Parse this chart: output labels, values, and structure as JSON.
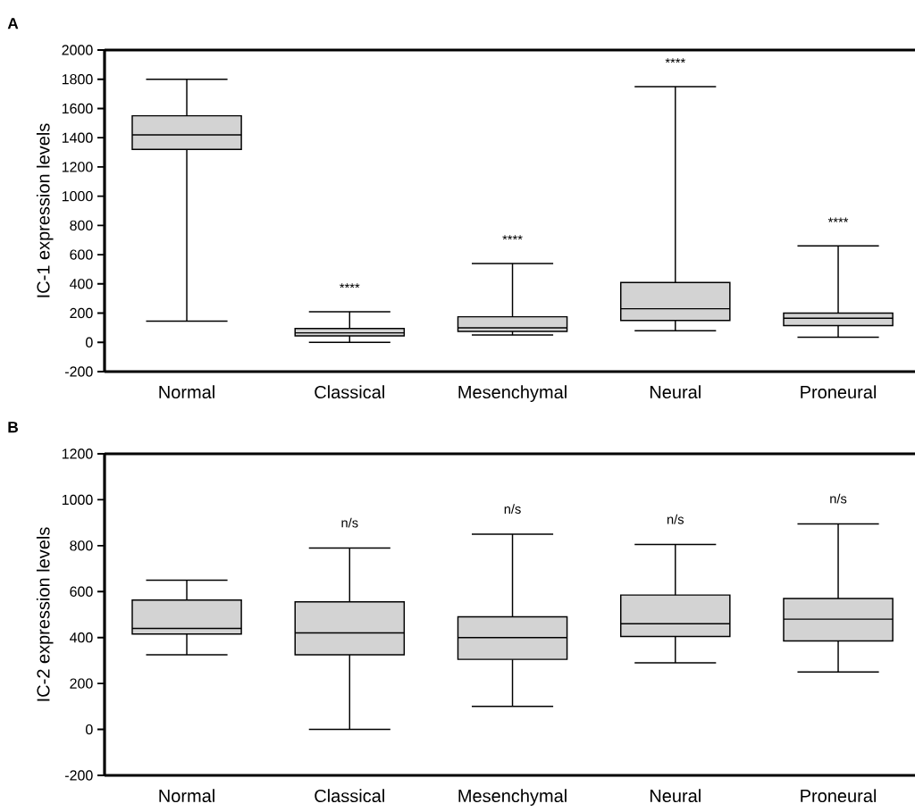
{
  "chart_data": [
    {
      "type": "box",
      "title": "A",
      "ylabel": "IC-1 expression levels",
      "categories": [
        "Normal",
        "Classical",
        "Mesenchymal",
        "Neural",
        "Proneural"
      ],
      "ylim": [
        -200,
        2000
      ],
      "yticks": [
        -200,
        0,
        200,
        400,
        600,
        800,
        1000,
        1200,
        1400,
        1600,
        1800,
        2000
      ],
      "series": [
        {
          "color": "#d3d3d3",
          "boxes": [
            {
              "low": 145,
              "q1": 1320,
              "median": 1420,
              "q3": 1550,
              "high": 1800
            },
            {
              "low": 0,
              "q1": 45,
              "median": 65,
              "q3": 95,
              "high": 210
            },
            {
              "low": 50,
              "q1": 75,
              "median": 100,
              "q3": 175,
              "high": 540
            },
            {
              "low": 80,
              "q1": 150,
              "median": 230,
              "q3": 410,
              "high": 1750
            },
            {
              "low": 35,
              "q1": 115,
              "median": 165,
              "q3": 200,
              "high": 660
            }
          ]
        }
      ],
      "annotations": [
        "****",
        "****",
        "****",
        "****"
      ]
    },
    {
      "type": "box",
      "title": "B",
      "ylabel": "IC-2 expression levels",
      "categories": [
        "Normal",
        "Classical",
        "Mesenchymal",
        "Neural",
        "Proneural"
      ],
      "ylim": [
        -200,
        1200
      ],
      "yticks": [
        -200,
        0,
        200,
        400,
        600,
        800,
        1000,
        1200
      ],
      "series": [
        {
          "color": "#d3d3d3",
          "boxes": [
            {
              "low": 325,
              "q1": 415,
              "median": 440,
              "q3": 563,
              "high": 650
            },
            {
              "low": 0,
              "q1": 325,
              "median": 420,
              "q3": 555,
              "high": 790
            },
            {
              "low": 100,
              "q1": 305,
              "median": 400,
              "q3": 490,
              "high": 850
            },
            {
              "low": 290,
              "q1": 405,
              "median": 460,
              "q3": 585,
              "high": 805
            },
            {
              "low": 250,
              "q1": 385,
              "median": 480,
              "q3": 570,
              "high": 895
            }
          ]
        }
      ],
      "annotations": [
        "n/s",
        "n/s",
        "n/s",
        "n/s"
      ]
    }
  ]
}
